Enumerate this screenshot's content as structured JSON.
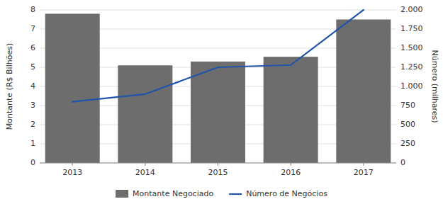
{
  "chart_data": {
    "type": "bar",
    "x": [
      2013,
      2014,
      2015,
      2016,
      2017
    ],
    "xlim": [
      2012.55,
      2017.45
    ],
    "xticks": [
      2013,
      2014,
      2015,
      2016,
      2017
    ],
    "ylabel": "Montante (R$ Bilhões)",
    "y2label": "Número (milhares)",
    "ylim": [
      0,
      8
    ],
    "yticks": [
      0,
      1,
      2,
      3,
      4,
      5,
      6,
      7,
      8
    ],
    "y2lim": [
      0,
      2000
    ],
    "y2ticks": [
      0,
      250,
      500,
      750,
      {
        "value": 1000,
        "label": "1.000"
      },
      {
        "value": 1250,
        "label": "1.250"
      },
      {
        "value": 1500,
        "label": "1.500"
      },
      {
        "value": 1750,
        "label": "1.750"
      },
      {
        "value": 2000,
        "label": "2.000"
      }
    ],
    "grid": true,
    "legend": "bottom",
    "series": [
      {
        "name": "Montante Negociado",
        "type": "bar",
        "color": "#6d6d6d",
        "values": [
          7.8,
          5.1,
          5.3,
          5.55,
          7.5
        ]
      },
      {
        "name": "Número de Negócios",
        "type": "line",
        "color": "#2255AA",
        "axis": "y2",
        "values": [
          800,
          900,
          1250,
          1280,
          2000
        ]
      }
    ]
  }
}
